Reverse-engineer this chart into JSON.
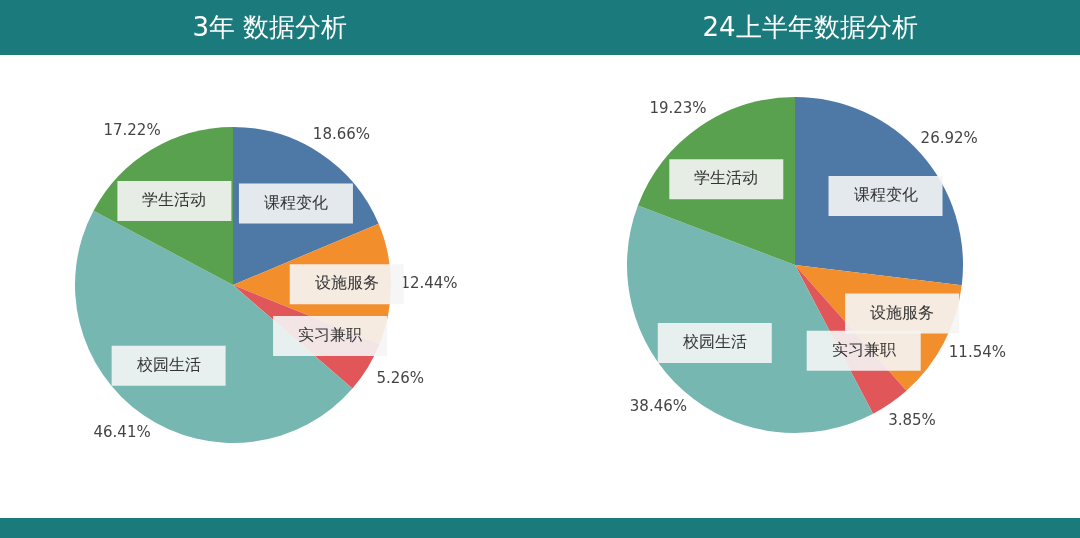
{
  "chart_data": [
    {
      "type": "pie",
      "title": "3年 数据分析",
      "categories": [
        "课程变化",
        "设施服务",
        "实习兼职",
        "校园生活",
        "学生活动"
      ],
      "values": [
        18.66,
        12.44,
        5.26,
        46.41,
        17.22
      ],
      "value_labels": [
        "18.66%",
        "12.44%",
        "5.26%",
        "46.41%",
        "17.22%"
      ],
      "colors": [
        "#4e79a7",
        "#f28e2b",
        "#e15759",
        "#76b7b2",
        "#59a14f"
      ],
      "legend": false
    },
    {
      "type": "pie",
      "title": "24上半年数据分析",
      "categories": [
        "课程变化",
        "设施服务",
        "实习兼职",
        "校园生活",
        "学生活动"
      ],
      "values": [
        26.92,
        11.54,
        3.85,
        38.46,
        19.23
      ],
      "value_labels": [
        "26.92%",
        "11.54%",
        "3.85%",
        "38.46%",
        "19.23%"
      ],
      "colors": [
        "#4e79a7",
        "#f28e2b",
        "#e15759",
        "#76b7b2",
        "#59a14f"
      ],
      "legend": false
    }
  ]
}
